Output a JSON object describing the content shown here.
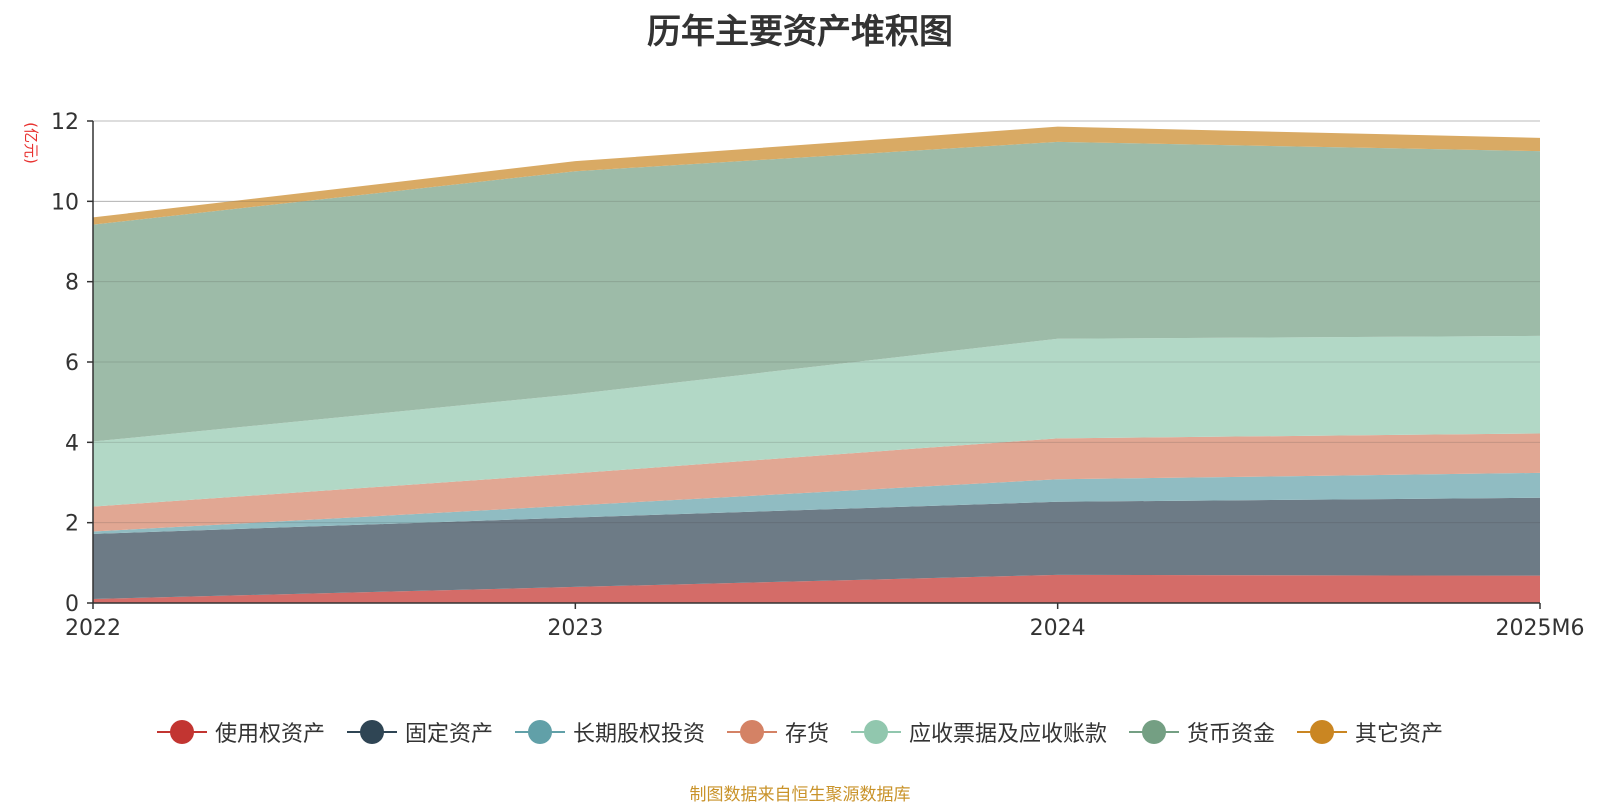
{
  "chart_data": {
    "type": "area",
    "stacked": true,
    "title": "历年主要资产堆积图",
    "ylabel": "(亿元)",
    "xlabel": "",
    "categories": [
      "2022",
      "2023",
      "2024",
      "2025M6"
    ],
    "ylim": [
      0,
      12
    ],
    "yticks": [
      0,
      2,
      4,
      6,
      8,
      10,
      12
    ],
    "grid": true,
    "legend_position": "bottom",
    "series": [
      {
        "name": "使用权资产",
        "color": "#c23531",
        "fill": "#d46c68",
        "values": [
          0.1,
          0.4,
          0.7,
          0.68
        ]
      },
      {
        "name": "固定资产",
        "color": "#2f4554",
        "fill": "#6d7b86",
        "values": [
          1.62,
          1.73,
          1.82,
          1.94
        ]
      },
      {
        "name": "长期股权投资",
        "color": "#61a0a8",
        "fill": "#90bcc2",
        "values": [
          0.06,
          0.3,
          0.56,
          0.62
        ]
      },
      {
        "name": "存货",
        "color": "#d48265",
        "fill": "#e1a793",
        "values": [
          0.62,
          0.8,
          1.02,
          0.98
        ]
      },
      {
        "name": "应收票据及应收账款",
        "color": "#91c7ae",
        "fill": "#b2d8c6",
        "values": [
          1.62,
          1.97,
          2.48,
          2.43
        ]
      },
      {
        "name": "货币资金",
        "color": "#749f83",
        "fill": "#9dbba8",
        "values": [
          5.4,
          5.55,
          4.9,
          4.6
        ]
      },
      {
        "name": "其它资产",
        "color": "#ca8622",
        "fill": "#d9aa64",
        "values": [
          0.18,
          0.25,
          0.38,
          0.33
        ]
      }
    ]
  },
  "source": "制图数据来自恒生聚源数据库"
}
